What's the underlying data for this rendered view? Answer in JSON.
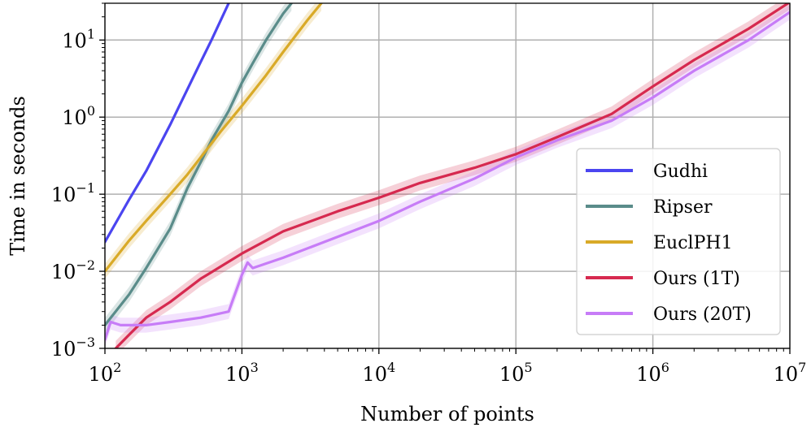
{
  "chart_data": {
    "type": "line",
    "xlabel": "Number of points",
    "ylabel": "Time in seconds",
    "xscale": "log",
    "yscale": "log",
    "xlim": [
      100,
      10000000
    ],
    "ylim": [
      0.001,
      30
    ],
    "grid": true,
    "legend_position": "lower-right",
    "x_ticks": [
      {
        "base": "10",
        "exp": "2",
        "value": 100
      },
      {
        "base": "10",
        "exp": "3",
        "value": 1000
      },
      {
        "base": "10",
        "exp": "4",
        "value": 10000
      },
      {
        "base": "10",
        "exp": "5",
        "value": 100000
      },
      {
        "base": "10",
        "exp": "6",
        "value": 1000000
      },
      {
        "base": "10",
        "exp": "7",
        "value": 10000000
      }
    ],
    "y_ticks": [
      {
        "base": "10",
        "exp": "−3",
        "value": 0.001
      },
      {
        "base": "10",
        "exp": "−2",
        "value": 0.01
      },
      {
        "base": "10",
        "exp": "−1",
        "value": 0.1
      },
      {
        "base": "10",
        "exp": "0",
        "value": 1
      },
      {
        "base": "10",
        "exp": "1",
        "value": 10
      }
    ],
    "series": [
      {
        "name": "Gudhi",
        "color": "#4b45f0",
        "x": [
          100,
          150,
          200,
          300,
          400,
          500,
          600,
          700,
          800
        ],
        "y": [
          0.024,
          0.085,
          0.2,
          0.8,
          2.3,
          5.2,
          10,
          18,
          30
        ]
      },
      {
        "name": "Ripser",
        "color": "#5a8c8a",
        "band": true,
        "x": [
          100,
          150,
          200,
          300,
          400,
          500,
          600,
          700,
          800,
          1000,
          1200,
          1500,
          2000,
          2300
        ],
        "y": [
          0.002,
          0.005,
          0.011,
          0.036,
          0.12,
          0.26,
          0.5,
          0.8,
          1.2,
          2.8,
          5,
          10,
          22,
          30
        ]
      },
      {
        "name": "EuclPH1",
        "color": "#d9aa28",
        "band": true,
        "x": [
          100,
          150,
          200,
          300,
          400,
          500,
          700,
          1000,
          1500,
          2000,
          3000,
          3800
        ],
        "y": [
          0.01,
          0.025,
          0.045,
          0.1,
          0.18,
          0.3,
          0.65,
          1.4,
          3.5,
          7,
          18,
          30
        ]
      },
      {
        "name": "Ours (1T)",
        "color": "#d6294f",
        "band": true,
        "x": [
          120,
          150,
          200,
          300,
          500,
          1000,
          2000,
          5000,
          10000,
          20000,
          50000,
          100000,
          200000,
          500000,
          1000000,
          2000000,
          5000000,
          10000000
        ],
        "y": [
          0.001,
          0.0015,
          0.0025,
          0.004,
          0.008,
          0.017,
          0.033,
          0.06,
          0.09,
          0.14,
          0.22,
          0.33,
          0.55,
          1.1,
          2.5,
          5.5,
          14,
          31
        ]
      },
      {
        "name": "Ours (20T)",
        "color": "#c77cf7",
        "band": true,
        "x": [
          100,
          110,
          130,
          200,
          300,
          500,
          800,
          1000,
          1100,
          1200,
          2000,
          5000,
          10000,
          20000,
          50000,
          100000,
          200000,
          500000,
          1000000,
          2000000,
          5000000,
          10000000
        ],
        "y": [
          0.0013,
          0.0022,
          0.002,
          0.002,
          0.0022,
          0.0025,
          0.003,
          0.009,
          0.013,
          0.011,
          0.015,
          0.028,
          0.045,
          0.08,
          0.16,
          0.3,
          0.5,
          0.9,
          1.8,
          4,
          10,
          23
        ]
      }
    ]
  }
}
